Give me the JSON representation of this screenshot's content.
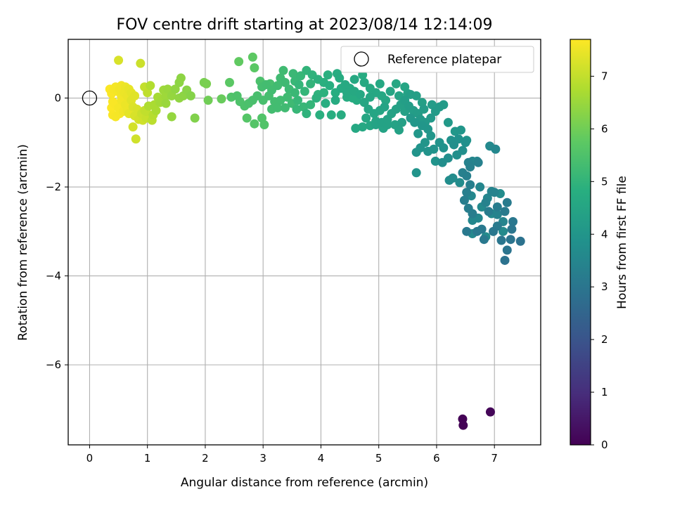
{
  "chart_data": {
    "type": "scatter",
    "title": "FOV centre drift starting at 2023/08/14 12:14:09",
    "xlabel": "Angular distance from reference (arcmin)",
    "ylabel": "Rotation from reference (arcmin)",
    "xlim": [
      -0.37,
      7.8
    ],
    "ylim": [
      -7.8,
      1.32
    ],
    "xticks": [
      0,
      1,
      2,
      3,
      4,
      5,
      6,
      7
    ],
    "yticks": [
      0,
      -2,
      -4,
      -6
    ],
    "xtick_labels": [
      "0",
      "1",
      "2",
      "3",
      "4",
      "5",
      "6",
      "7"
    ],
    "ytick_labels": [
      "0",
      "−2",
      "−4",
      "−6"
    ],
    "grid": true,
    "legend": {
      "placement": "top-right",
      "entries": [
        "Reference platepar"
      ]
    },
    "colorbar": {
      "label": "Hours from first FF file",
      "colormap": "viridis",
      "range": [
        0,
        7.7
      ],
      "ticks": [
        0,
        1,
        2,
        3,
        4,
        5,
        6,
        7
      ],
      "tick_labels": [
        "0",
        "1",
        "2",
        "3",
        "4",
        "5",
        "6",
        "7"
      ]
    },
    "reference_point": {
      "x": 0,
      "y": 0,
      "label": "Reference platepar"
    },
    "points": [
      [
        6.45,
        -7.22,
        0.05
      ],
      [
        6.46,
        -7.36,
        0.05
      ],
      [
        6.93,
        -7.06,
        0.1
      ],
      [
        7.45,
        -3.22,
        2.9
      ],
      [
        7.18,
        -3.65,
        2.9
      ],
      [
        7.22,
        -3.42,
        2.95
      ],
      [
        7.28,
        -3.18,
        2.95
      ],
      [
        7.3,
        -2.95,
        3.0
      ],
      [
        7.12,
        -3.2,
        3.0
      ],
      [
        7.32,
        -2.78,
        3.05
      ],
      [
        6.98,
        -3.0,
        3.05
      ],
      [
        6.82,
        -3.18,
        3.1
      ],
      [
        6.7,
        -3.0,
        3.1
      ],
      [
        6.52,
        -3.0,
        3.12
      ],
      [
        6.78,
        -2.95,
        3.12
      ],
      [
        7.05,
        -2.88,
        3.15
      ],
      [
        7.18,
        -2.55,
        3.15
      ],
      [
        7.22,
        -2.35,
        3.18
      ],
      [
        7.05,
        -2.45,
        3.2
      ],
      [
        6.9,
        -2.55,
        3.2
      ],
      [
        6.62,
        -2.6,
        3.22
      ],
      [
        6.55,
        -2.48,
        3.25
      ],
      [
        6.48,
        -2.3,
        3.25
      ],
      [
        6.52,
        -2.12,
        3.28
      ],
      [
        6.58,
        -1.95,
        3.3
      ],
      [
        6.52,
        -1.75,
        3.3
      ],
      [
        6.45,
        -1.68,
        3.32
      ],
      [
        6.58,
        -1.55,
        3.35
      ],
      [
        6.72,
        -1.45,
        3.35
      ],
      [
        6.55,
        -1.45,
        3.38
      ],
      [
        6.85,
        -2.35,
        3.38
      ],
      [
        7.0,
        -2.12,
        3.4
      ],
      [
        7.05,
        -2.62,
        3.4
      ],
      [
        6.95,
        -2.1,
        3.45
      ],
      [
        7.15,
        -2.78,
        3.45
      ],
      [
        6.75,
        -2.0,
        3.5
      ],
      [
        6.88,
        -2.25,
        3.52
      ],
      [
        6.72,
        -2.7,
        3.55
      ],
      [
        6.62,
        -2.75,
        3.55
      ],
      [
        6.6,
        -2.2,
        3.58
      ],
      [
        6.62,
        -3.05,
        3.6
      ],
      [
        6.95,
        -2.6,
        3.6
      ],
      [
        6.78,
        -2.45,
        3.62
      ],
      [
        7.15,
        -3.0,
        3.62
      ],
      [
        6.85,
        -3.12,
        3.65
      ],
      [
        7.1,
        -2.15,
        3.68
      ],
      [
        6.28,
        -1.8,
        3.7
      ],
      [
        6.4,
        -1.9,
        3.7
      ],
      [
        6.22,
        -1.85,
        3.72
      ],
      [
        6.1,
        -1.45,
        3.75
      ],
      [
        6.2,
        -1.35,
        3.75
      ],
      [
        6.35,
        -1.28,
        3.78
      ],
      [
        6.45,
        -1.18,
        3.8
      ],
      [
        6.3,
        -1.05,
        3.8
      ],
      [
        6.5,
        -1.0,
        3.82
      ],
      [
        6.38,
        -0.92,
        3.85
      ],
      [
        6.25,
        -0.95,
        3.85
      ],
      [
        6.12,
        -1.12,
        3.88
      ],
      [
        6.05,
        -1.0,
        3.9
      ],
      [
        5.95,
        -1.15,
        3.9
      ],
      [
        5.85,
        -1.2,
        3.92
      ],
      [
        5.72,
        -1.12,
        3.95
      ],
      [
        5.65,
        -1.22,
        3.95
      ],
      [
        5.8,
        -1.0,
        3.98
      ],
      [
        5.9,
        -0.85,
        4.0
      ],
      [
        5.85,
        -0.7,
        4.0
      ],
      [
        5.75,
        -0.62,
        4.02
      ],
      [
        5.68,
        -0.8,
        4.05
      ],
      [
        5.62,
        -0.55,
        4.05
      ],
      [
        5.55,
        -0.45,
        4.08
      ],
      [
        5.72,
        -0.48,
        4.1
      ],
      [
        5.8,
        -0.55,
        4.12
      ],
      [
        5.9,
        -0.45,
        4.12
      ],
      [
        5.98,
        -0.3,
        4.15
      ],
      [
        6.05,
        -0.2,
        4.15
      ],
      [
        6.12,
        -0.15,
        4.18
      ],
      [
        5.92,
        -0.15,
        4.2
      ],
      [
        5.78,
        -0.25,
        4.2
      ],
      [
        5.68,
        -0.35,
        4.22
      ],
      [
        5.6,
        -0.28,
        4.25
      ],
      [
        5.52,
        -0.18,
        4.25
      ],
      [
        5.45,
        -0.05,
        4.28
      ],
      [
        5.55,
        0.08,
        4.3
      ],
      [
        5.65,
        0.05,
        4.3
      ],
      [
        5.75,
        -0.1,
        4.32
      ],
      [
        5.45,
        -0.3,
        4.35
      ],
      [
        5.38,
        -0.15,
        4.35
      ],
      [
        5.3,
        -0.25,
        4.38
      ],
      [
        5.22,
        -0.35,
        4.4
      ],
      [
        5.15,
        -0.48,
        4.4
      ],
      [
        5.05,
        -0.55,
        4.42
      ],
      [
        4.95,
        -0.6,
        4.45
      ],
      [
        5.1,
        -0.2,
        4.45
      ],
      [
        6.42,
        -0.72,
        4.0
      ],
      [
        6.52,
        -0.95,
        3.95
      ],
      [
        6.7,
        -1.42,
        3.5
      ],
      [
        6.62,
        -1.42,
        3.52
      ],
      [
        6.92,
        -1.08,
        3.6
      ],
      [
        7.02,
        -1.15,
        3.55
      ],
      [
        5.98,
        -1.42,
        3.9
      ],
      [
        5.65,
        -1.68,
        3.95
      ],
      [
        6.2,
        -0.55,
        4.1
      ],
      [
        6.32,
        -0.75,
        4.05
      ],
      [
        5.02,
        -0.28,
        4.5
      ],
      [
        4.92,
        -0.35,
        4.5
      ],
      [
        4.82,
        -0.25,
        4.52
      ],
      [
        4.75,
        -0.1,
        4.55
      ],
      [
        4.85,
        0.02,
        4.55
      ],
      [
        4.95,
        0.12,
        4.58
      ],
      [
        5.05,
        0.05,
        4.6
      ],
      [
        4.68,
        0.08,
        4.6
      ],
      [
        4.58,
        0.15,
        4.62
      ],
      [
        4.5,
        0.22,
        4.65
      ],
      [
        4.42,
        0.3,
        4.65
      ],
      [
        4.35,
        0.22,
        4.68
      ],
      [
        4.45,
        0.02,
        4.7
      ],
      [
        4.55,
        0.0,
        4.7
      ],
      [
        4.62,
        -0.05,
        4.72
      ],
      [
        5.02,
        0.32,
        4.6
      ],
      [
        5.3,
        0.32,
        4.55
      ],
      [
        5.45,
        0.25,
        4.5
      ],
      [
        5.2,
        0.15,
        4.5
      ],
      [
        4.75,
        0.35,
        4.65
      ],
      [
        4.85,
        0.22,
        4.62
      ],
      [
        5.12,
        -0.05,
        4.55
      ],
      [
        5.35,
        0.05,
        4.45
      ],
      [
        5.5,
        0.1,
        4.4
      ],
      [
        4.72,
        0.52,
        4.7
      ],
      [
        4.95,
        -0.52,
        4.5
      ],
      [
        4.78,
        -0.45,
        4.55
      ],
      [
        4.6,
        -0.68,
        4.6
      ],
      [
        4.72,
        -0.65,
        4.6
      ],
      [
        4.85,
        -0.62,
        4.55
      ],
      [
        5.08,
        -0.68,
        4.45
      ],
      [
        5.15,
        -0.6,
        4.42
      ],
      [
        5.28,
        -0.6,
        4.4
      ],
      [
        5.35,
        -0.72,
        4.38
      ],
      [
        5.4,
        -0.55,
        4.35
      ],
      [
        4.28,
        0.55,
        4.75
      ],
      [
        4.32,
        0.45,
        4.72
      ],
      [
        4.25,
        0.12,
        4.78
      ],
      [
        4.15,
        0.28,
        4.8
      ],
      [
        4.05,
        0.35,
        4.85
      ],
      [
        4.12,
        0.52,
        4.85
      ],
      [
        3.95,
        0.42,
        4.9
      ],
      [
        3.85,
        0.52,
        4.95
      ],
      [
        3.75,
        0.62,
        5.0
      ],
      [
        3.82,
        0.32,
        5.0
      ],
      [
        3.72,
        0.15,
        5.05
      ],
      [
        3.62,
        0.3,
        5.05
      ],
      [
        3.65,
        0.5,
        5.1
      ],
      [
        3.55,
        0.38,
        5.12
      ],
      [
        3.52,
        0.55,
        5.15
      ],
      [
        3.6,
        -0.05,
        5.1
      ],
      [
        3.7,
        -0.2,
        5.1
      ],
      [
        3.82,
        -0.15,
        5.05
      ],
      [
        3.95,
        0.08,
        4.95
      ],
      [
        4.05,
        0.12,
        4.9
      ],
      [
        3.55,
        0.12,
        5.15
      ],
      [
        3.45,
        0.2,
        5.2
      ],
      [
        3.38,
        0.35,
        5.22
      ],
      [
        3.3,
        0.45,
        5.25
      ],
      [
        3.35,
        0.62,
        5.25
      ],
      [
        3.25,
        0.28,
        5.28
      ],
      [
        3.15,
        0.18,
        5.3
      ],
      [
        3.05,
        0.3,
        5.32
      ],
      [
        2.98,
        0.25,
        5.35
      ],
      [
        3.1,
        0.05,
        5.35
      ],
      [
        3.2,
        -0.08,
        5.32
      ],
      [
        3.3,
        -0.05,
        5.3
      ],
      [
        3.42,
        0.02,
        5.25
      ],
      [
        3.5,
        -0.12,
        5.22
      ],
      [
        3.38,
        -0.22,
        5.25
      ],
      [
        3.25,
        -0.22,
        5.3
      ],
      [
        3.15,
        -0.25,
        5.32
      ],
      [
        3.0,
        -0.05,
        5.38
      ],
      [
        2.9,
        0.05,
        5.4
      ],
      [
        2.82,
        -0.05,
        5.42
      ],
      [
        2.75,
        -0.12,
        5.45
      ],
      [
        2.68,
        -0.18,
        5.48
      ],
      [
        2.6,
        -0.08,
        5.5
      ],
      [
        2.55,
        0.05,
        5.5
      ],
      [
        2.45,
        0.02,
        5.55
      ],
      [
        4.35,
        -0.38,
        4.75
      ],
      [
        4.18,
        -0.38,
        4.8
      ],
      [
        3.98,
        -0.38,
        4.85
      ],
      [
        3.75,
        -0.35,
        4.95
      ],
      [
        3.58,
        -0.25,
        5.1
      ],
      [
        4.58,
        0.42,
        4.62
      ],
      [
        4.45,
        0.12,
        4.65
      ],
      [
        4.25,
        -0.05,
        4.7
      ],
      [
        4.08,
        -0.12,
        4.78
      ],
      [
        3.92,
        0.0,
        4.9
      ],
      [
        2.82,
        0.92,
        5.75
      ],
      [
        2.85,
        0.68,
        5.7
      ],
      [
        2.58,
        0.82,
        5.8
      ],
      [
        2.42,
        0.35,
        5.7
      ],
      [
        2.98,
        -0.45,
        5.55
      ],
      [
        3.02,
        -0.6,
        5.55
      ],
      [
        2.85,
        -0.58,
        5.6
      ],
      [
        2.72,
        -0.45,
        5.62
      ],
      [
        3.12,
        0.32,
        5.4
      ],
      [
        2.95,
        0.38,
        5.45
      ],
      [
        2.28,
        -0.02,
        5.9
      ],
      [
        2.05,
        -0.05,
        6.0
      ],
      [
        1.98,
        0.35,
        6.1
      ],
      [
        2.02,
        0.32,
        6.1
      ],
      [
        1.82,
        -0.45,
        6.2
      ],
      [
        1.75,
        0.05,
        6.25
      ],
      [
        1.68,
        0.18,
        6.3
      ],
      [
        1.55,
        0.35,
        6.35
      ],
      [
        1.58,
        0.45,
        6.35
      ],
      [
        1.48,
        0.2,
        6.4
      ],
      [
        1.42,
        0.05,
        6.45
      ],
      [
        1.35,
        0.2,
        6.5
      ],
      [
        1.28,
        0.18,
        6.55
      ],
      [
        1.32,
        0.05,
        6.55
      ],
      [
        1.25,
        -0.05,
        6.6
      ],
      [
        1.18,
        0.02,
        6.65
      ],
      [
        1.12,
        -0.15,
        6.7
      ],
      [
        1.15,
        -0.28,
        6.7
      ],
      [
        1.05,
        0.28,
        6.8
      ],
      [
        1.02,
        -0.18,
        6.75
      ],
      [
        1.42,
        -0.42,
        6.45
      ],
      [
        1.32,
        -0.12,
        6.5
      ],
      [
        1.55,
        0.0,
        6.4
      ],
      [
        1.62,
        0.05,
        6.35
      ],
      [
        1.22,
        -0.1,
        6.6
      ],
      [
        0.95,
        -0.28,
        7.0
      ],
      [
        0.9,
        -0.35,
        7.1
      ],
      [
        0.98,
        -0.45,
        7.05
      ],
      [
        0.92,
        -0.5,
        7.15
      ],
      [
        0.85,
        -0.48,
        7.2
      ],
      [
        0.78,
        -0.4,
        7.25
      ],
      [
        0.82,
        -0.25,
        7.25
      ],
      [
        0.75,
        -0.2,
        7.3
      ],
      [
        0.72,
        -0.05,
        7.35
      ],
      [
        0.78,
        0.05,
        7.35
      ],
      [
        0.72,
        0.12,
        7.4
      ],
      [
        0.68,
        0.2,
        7.45
      ],
      [
        0.62,
        0.25,
        7.5
      ],
      [
        0.6,
        0.12,
        7.5
      ],
      [
        0.55,
        0.05,
        7.55
      ],
      [
        0.52,
        0.2,
        7.55
      ],
      [
        0.48,
        0.15,
        7.6
      ],
      [
        0.45,
        0.25,
        7.6
      ],
      [
        0.42,
        0.2,
        7.62
      ],
      [
        0.38,
        0.1,
        7.65
      ],
      [
        0.4,
        -0.08,
        7.65
      ],
      [
        0.45,
        -0.15,
        7.65
      ],
      [
        0.5,
        -0.22,
        7.6
      ],
      [
        0.52,
        -0.35,
        7.6
      ],
      [
        0.45,
        -0.42,
        7.62
      ],
      [
        0.4,
        -0.38,
        7.65
      ],
      [
        0.55,
        -0.05,
        7.55
      ],
      [
        0.62,
        -0.15,
        7.5
      ],
      [
        0.65,
        -0.28,
        7.5
      ],
      [
        0.58,
        -0.3,
        7.55
      ],
      [
        0.35,
        0.2,
        7.68
      ],
      [
        0.38,
        -0.22,
        7.68
      ],
      [
        0.6,
        0.02,
        7.55
      ],
      [
        0.65,
        0.05,
        7.48
      ],
      [
        0.55,
        0.28,
        7.55
      ],
      [
        0.5,
        0.85,
        7.25
      ],
      [
        0.88,
        0.78,
        7.1
      ],
      [
        0.95,
        0.25,
        7.0
      ],
      [
        1.0,
        0.12,
        6.95
      ],
      [
        0.75,
        -0.65,
        7.2
      ],
      [
        0.8,
        -0.92,
        7.15
      ],
      [
        0.68,
        -0.35,
        7.4
      ],
      [
        1.1,
        -0.38,
        6.85
      ],
      [
        1.08,
        -0.5,
        6.9
      ],
      [
        0.98,
        -0.3,
        6.98
      ]
    ]
  }
}
